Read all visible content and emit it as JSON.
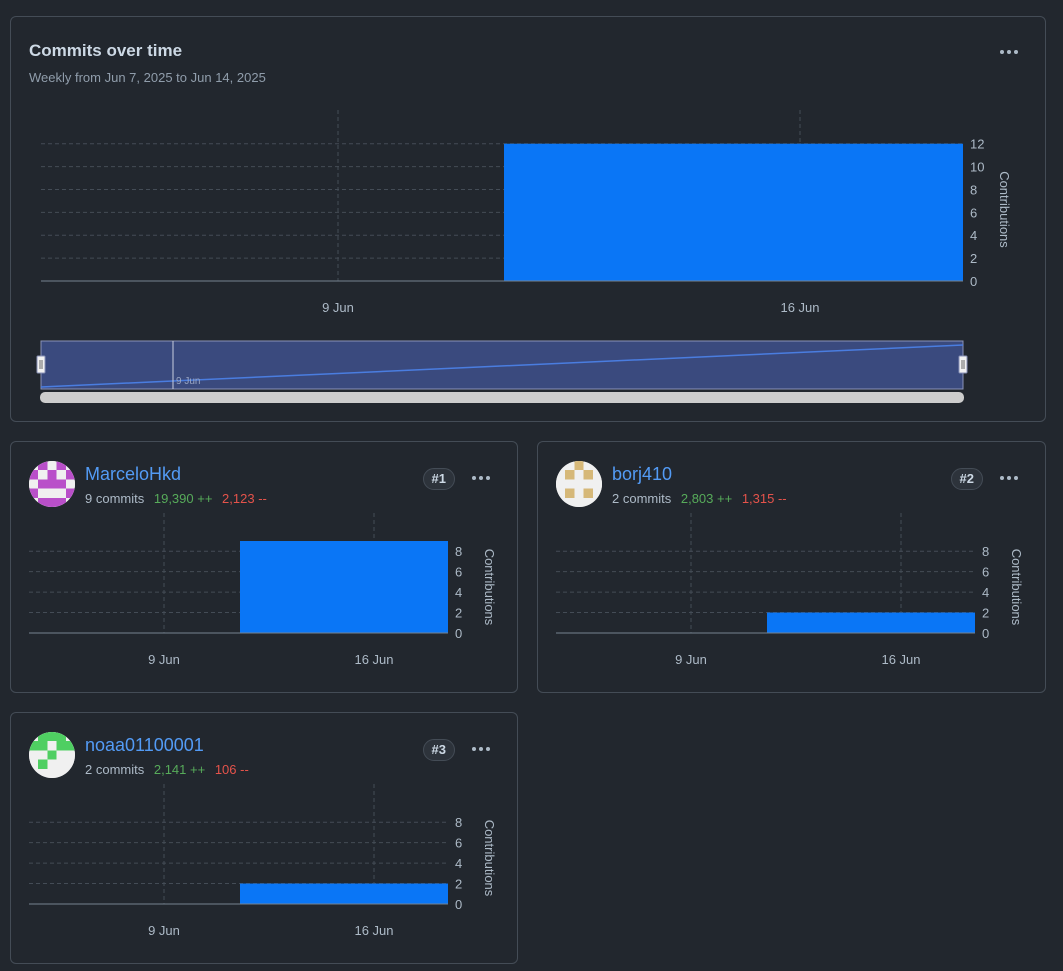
{
  "main": {
    "title": "Commits over time",
    "subtitle": "Weekly from Jun 7, 2025 to Jun 14, 2025",
    "navigator_label": "9 Jun"
  },
  "chart_data": [
    {
      "type": "bar",
      "title": "Commits over time",
      "categories": [
        "9 Jun",
        "16 Jun"
      ],
      "values": [
        0,
        12
      ],
      "ylabel": "Contributions",
      "yticks": [
        0,
        2,
        4,
        6,
        8,
        10,
        12
      ],
      "ylim": [
        0,
        12.5
      ],
      "x_ticks": [
        "9 Jun",
        "16 Jun"
      ],
      "bar_color": "#0a76f6"
    },
    {
      "type": "bar",
      "title": "MarceloHkd",
      "categories": [
        "9 Jun",
        "16 Jun"
      ],
      "values": [
        0,
        9
      ],
      "ylabel": "Contributions",
      "yticks": [
        0,
        2,
        4,
        6,
        8
      ],
      "ylim": [
        0,
        9
      ],
      "x_ticks": [
        "9 Jun",
        "16 Jun"
      ]
    },
    {
      "type": "bar",
      "title": "borj410",
      "categories": [
        "9 Jun",
        "16 Jun"
      ],
      "values": [
        0,
        2
      ],
      "ylabel": "Contributions",
      "yticks": [
        0,
        2,
        4,
        6,
        8
      ],
      "ylim": [
        0,
        9
      ],
      "x_ticks": [
        "9 Jun",
        "16 Jun"
      ]
    },
    {
      "type": "bar",
      "title": "noaa01100001",
      "categories": [
        "9 Jun",
        "16 Jun"
      ],
      "values": [
        0,
        2
      ],
      "ylabel": "Contributions",
      "yticks": [
        0,
        2,
        4,
        6,
        8
      ],
      "ylim": [
        0,
        9
      ],
      "x_ticks": [
        "9 Jun",
        "16 Jun"
      ]
    }
  ],
  "contributors": [
    {
      "username": "MarceloHkd",
      "commits": "9 commits",
      "additions": "19,390 ++",
      "deletions": "2,123 --",
      "rank": "#1",
      "avatar_color": "#b94fc9"
    },
    {
      "username": "borj410",
      "commits": "2 commits",
      "additions": "2,803 ++",
      "deletions": "1,315 --",
      "rank": "#2",
      "avatar_color": "#d6b878"
    },
    {
      "username": "noaa01100001",
      "commits": "2 commits",
      "additions": "2,141 ++",
      "deletions": "106 --",
      "rank": "#3",
      "avatar_color": "#4fcf62"
    }
  ],
  "colors": {
    "background": "#22272e",
    "border": "#444c56",
    "bar": "#0a76f6",
    "link": "#539bf5",
    "additions": "#57ab5a",
    "deletions": "#e5534b",
    "navigator_fill": "#3a4a7e"
  }
}
